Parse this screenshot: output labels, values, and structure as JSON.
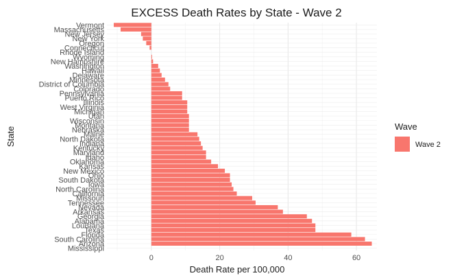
{
  "chart_data": {
    "type": "bar",
    "orientation": "horizontal",
    "title": "EXCESS Death Rates by State - Wave 2",
    "xlabel": "Death Rate per 100,000",
    "ylabel": "State",
    "xlim": [
      -13,
      66
    ],
    "x_ticks": [
      0,
      20,
      40,
      60
    ],
    "grid": true,
    "legend": {
      "title": "Wave",
      "position": "right",
      "entries": [
        "Wave 2"
      ]
    },
    "colors": {
      "Wave 2": "#F8766D"
    },
    "categories": [
      "Vermont",
      "Massachusetts",
      "New Jersey",
      "New York",
      "Oregon",
      "Connecticut",
      "Rhode Island",
      "Wyoming",
      "New Hampshire",
      "Washington",
      "Hawaii",
      "Delaware",
      "Minnesota",
      "District of Columbia",
      "Colorado",
      "Pennsylvania",
      "Puerto Rico",
      "Illinois",
      "West Virginia",
      "Michigan",
      "Utah",
      "Wisconsin",
      "Montana",
      "Nebraska",
      "Maine",
      "North Dakota",
      "Indiana",
      "Kentucky",
      "Maryland",
      "Idaho",
      "Oklahoma",
      "Kansas",
      "New Mexico",
      "Ohio",
      "South Dakota",
      "Iowa",
      "North Carolina",
      "California",
      "Missouri",
      "Tennessee",
      "Nevada",
      "Arkansas",
      "Georgia",
      "Alabama",
      "Louisiana",
      "Texas",
      "Florida",
      "South Carolina",
      "Arizona",
      "Mississippi"
    ],
    "series": [
      {
        "name": "Wave 2",
        "values": [
          -11,
          -9,
          -3,
          -2.5,
          -1.5,
          -0.5,
          0,
          0.2,
          0.5,
          2,
          2.5,
          3,
          4,
          5,
          5.5,
          9,
          9,
          10.5,
          10.5,
          10.5,
          11,
          11,
          11,
          11,
          13.5,
          14,
          14.5,
          15,
          16,
          16,
          17.5,
          19.5,
          21.5,
          23,
          23,
          23.5,
          24,
          25,
          29.5,
          30.5,
          37,
          38.5,
          45.5,
          47,
          48,
          48,
          58.5,
          62.5,
          64.5,
          0
        ]
      }
    ]
  }
}
